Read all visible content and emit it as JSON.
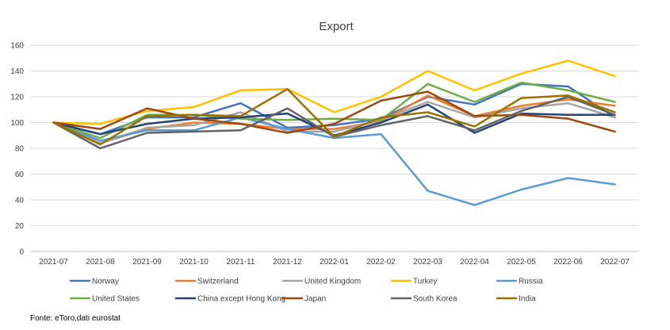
{
  "chart_data": {
    "type": "line",
    "title": "Export",
    "xlabel": "",
    "ylabel": "",
    "categories": [
      "2021-07",
      "2021-08",
      "2021-09",
      "2021-10",
      "2021-11",
      "2021-12",
      "2022-01",
      "2022-02",
      "2022-03",
      "2022-04",
      "2022-05",
      "2022-06",
      "2022-07"
    ],
    "ylim": [
      0,
      160
    ],
    "yticks": [
      0,
      20,
      40,
      60,
      80,
      100,
      120,
      140,
      160
    ],
    "grid": true,
    "legend_position": "bottom",
    "series": [
      {
        "name": "Norway",
        "color": "#4472C4",
        "values": [
          100,
          91,
          104,
          104,
          115,
          96,
          98,
          103,
          120,
          114,
          130,
          128,
          104
        ]
      },
      {
        "name": "Switzerland",
        "color": "#ED7D31",
        "values": [
          100,
          84,
          95,
          100,
          99,
          95,
          95,
          101,
          121,
          105,
          113,
          118,
          113
        ]
      },
      {
        "name": "United Kingdom",
        "color": "#A5A5A5",
        "values": [
          100,
          84,
          96,
          98,
          108,
          93,
          93,
          102,
          116,
          104,
          111,
          115,
          104
        ]
      },
      {
        "name": "Turkey",
        "color": "#FFC000",
        "values": [
          100,
          99,
          109,
          112,
          125,
          126,
          108,
          120,
          140,
          125,
          138,
          148,
          136
        ]
      },
      {
        "name": "Russia",
        "color": "#5B9BD5",
        "values": [
          100,
          86,
          94,
          94,
          104,
          95,
          88,
          91,
          47,
          36,
          48,
          57,
          52
        ]
      },
      {
        "name": "United States",
        "color": "#70AD47",
        "values": [
          100,
          88,
          106,
          106,
          103,
          102,
          103,
          102,
          130,
          116,
          131,
          125,
          116
        ]
      },
      {
        "name": "China except Hong Kong",
        "color": "#264478",
        "values": [
          100,
          91,
          99,
          103,
          104,
          107,
          90,
          100,
          114,
          92,
          107,
          106,
          106
        ]
      },
      {
        "name": "Japan",
        "color": "#9E480E",
        "values": [
          100,
          95,
          111,
          103,
          99,
          92,
          99,
          117,
          124,
          105,
          106,
          103,
          93
        ]
      },
      {
        "name": "South Korea",
        "color": "#636363",
        "values": [
          100,
          80,
          92,
          93,
          94,
          111,
          89,
          98,
          105,
          94,
          109,
          120,
          106
        ]
      },
      {
        "name": "India",
        "color": "#997300",
        "values": [
          100,
          83,
          105,
          106,
          105,
          126,
          89,
          104,
          108,
          97,
          119,
          121,
          108
        ]
      }
    ]
  },
  "source": "Fonte: eToro,dati eurostat"
}
